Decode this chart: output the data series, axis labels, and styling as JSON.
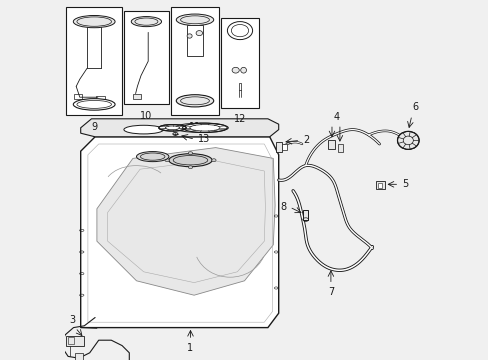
{
  "bg_color": "#f0f0f0",
  "lc": "#1a1a1a",
  "white": "#ffffff",
  "lgray": "#e8e8e8",
  "mgray": "#aaaaaa",
  "label_fs": 7,
  "lw_main": 0.8,
  "boxes": {
    "9": [
      0.005,
      0.68,
      0.155,
      0.3
    ],
    "10": [
      0.165,
      0.71,
      0.125,
      0.26
    ],
    "11": [
      0.295,
      0.68,
      0.135,
      0.3
    ],
    "12": [
      0.435,
      0.7,
      0.105,
      0.25
    ]
  }
}
